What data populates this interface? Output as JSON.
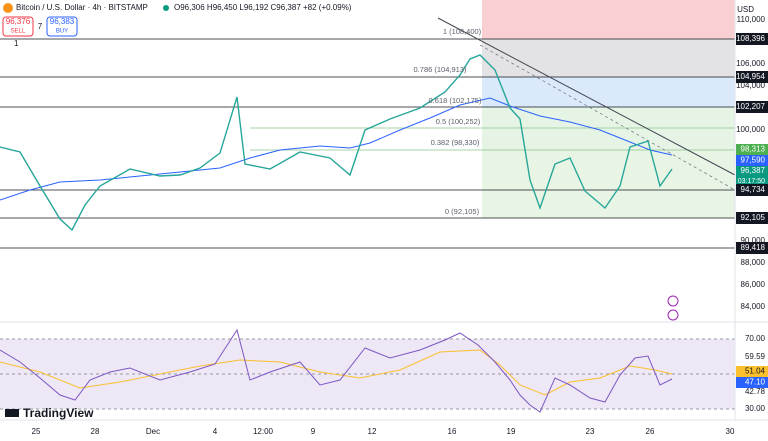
{
  "header": {
    "symbol": "Bitcoin / U.S. Dollar · 4h · BITSTAMP",
    "ohlc": "O96,306 H96,450 L96,192 C96,387 +82 (+0.09%)",
    "sell_price": "96,376",
    "sell_label": "SELL",
    "spread": "7",
    "buy_price": "96,383",
    "buy_label": "BUY",
    "interval_count": "1"
  },
  "fibonacci": [
    "1 (108,400)",
    "0.786 (104,913)",
    "0.618 (102,175)",
    "0.5 (100,252)",
    "0.382 (98,330)",
    "0 (92,105)"
  ],
  "price_axis": {
    "currency": "USD",
    "labels": [
      "110,000",
      "106,000",
      "104,000",
      "100,000",
      "90,000",
      "88,000",
      "86,000",
      "84,000"
    ],
    "highlighted": [
      "108,396",
      "104,954",
      "102,207",
      "98,313",
      "97,590",
      "96,387",
      "94,734",
      "92,105",
      "89,418"
    ],
    "countdown": "03:17:50"
  },
  "rsi_axis": {
    "labels": [
      "70.00",
      "59.59",
      "42.78",
      "30.00"
    ],
    "highlighted": [
      "51.04",
      "47.10"
    ]
  },
  "brand": "TradingView",
  "time_axis": [
    "25",
    "28",
    "Dec",
    "4",
    "12:00",
    "9",
    "12",
    "16",
    "19",
    "23",
    "26",
    "30"
  ]
}
